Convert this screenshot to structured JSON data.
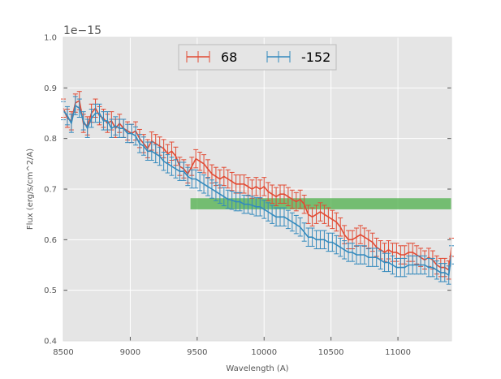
{
  "chart_data": {
    "type": "line",
    "title": "",
    "xlabel": "Wavelength (A)",
    "ylabel": "Flux (erg/s/cm^2/A)",
    "offset_text": "1e−15",
    "xlim": [
      8500,
      11400
    ],
    "ylim": [
      0.4,
      1.0
    ],
    "xticks": [
      8500,
      9000,
      9500,
      10000,
      10500,
      11000
    ],
    "xtick_labels": [
      "8500",
      "9000",
      "9500",
      "10000",
      "10500",
      "11000"
    ],
    "yticks": [
      0.4,
      0.5,
      0.6,
      0.7,
      0.8,
      0.9,
      1.0
    ],
    "ytick_labels": [
      "0.4",
      "0.5",
      "0.6",
      "0.7",
      "0.8",
      "0.9",
      "1.0"
    ],
    "grid": true,
    "legend_position": "top-center",
    "band": {
      "x_start": 9450,
      "x_end": 11400,
      "y_low": 0.66,
      "y_high": 0.682,
      "color": "#4daf4a"
    },
    "series": [
      {
        "name": "68",
        "color": "#e24a33",
        "error": 0.018,
        "x": [
          8500,
          8530,
          8560,
          8590,
          8620,
          8650,
          8680,
          8710,
          8740,
          8770,
          8800,
          8830,
          8860,
          8890,
          8920,
          8950,
          8980,
          9010,
          9040,
          9070,
          9100,
          9130,
          9160,
          9190,
          9220,
          9250,
          9280,
          9310,
          9340,
          9370,
          9400,
          9430,
          9460,
          9490,
          9520,
          9550,
          9580,
          9610,
          9640,
          9670,
          9700,
          9730,
          9760,
          9790,
          9820,
          9850,
          9880,
          9910,
          9940,
          9970,
          10000,
          10030,
          10060,
          10090,
          10120,
          10150,
          10180,
          10210,
          10240,
          10270,
          10300,
          10330,
          10360,
          10390,
          10420,
          10450,
          10480,
          10510,
          10540,
          10570,
          10600,
          10630,
          10660,
          10690,
          10720,
          10750,
          10780,
          10810,
          10840,
          10870,
          10900,
          10930,
          10960,
          10990,
          11020,
          11050,
          11080,
          11110,
          11140,
          11170,
          11200,
          11230,
          11260,
          11290,
          11320,
          11350,
          11380,
          11400
        ],
        "y": [
          0.86,
          0.84,
          0.835,
          0.87,
          0.875,
          0.83,
          0.825,
          0.85,
          0.86,
          0.845,
          0.84,
          0.83,
          0.835,
          0.82,
          0.83,
          0.82,
          0.815,
          0.81,
          0.815,
          0.8,
          0.79,
          0.78,
          0.795,
          0.79,
          0.785,
          0.78,
          0.77,
          0.775,
          0.765,
          0.745,
          0.74,
          0.73,
          0.745,
          0.76,
          0.755,
          0.75,
          0.74,
          0.73,
          0.725,
          0.72,
          0.725,
          0.72,
          0.715,
          0.71,
          0.71,
          0.71,
          0.705,
          0.7,
          0.705,
          0.7,
          0.705,
          0.695,
          0.69,
          0.685,
          0.69,
          0.69,
          0.685,
          0.68,
          0.675,
          0.68,
          0.67,
          0.65,
          0.645,
          0.65,
          0.655,
          0.65,
          0.645,
          0.64,
          0.635,
          0.625,
          0.61,
          0.6,
          0.6,
          0.605,
          0.61,
          0.605,
          0.6,
          0.595,
          0.585,
          0.58,
          0.575,
          0.58,
          0.575,
          0.575,
          0.57,
          0.57,
          0.575,
          0.575,
          0.57,
          0.565,
          0.56,
          0.565,
          0.56,
          0.55,
          0.545,
          0.545,
          0.54,
          0.585
        ]
      },
      {
        "name": "-152",
        "color": "#348abd",
        "error": 0.018,
        "x": [
          8500,
          8530,
          8560,
          8590,
          8620,
          8650,
          8680,
          8710,
          8740,
          8770,
          8800,
          8830,
          8860,
          8890,
          8920,
          8950,
          8980,
          9010,
          9040,
          9070,
          9100,
          9130,
          9160,
          9190,
          9220,
          9250,
          9280,
          9310,
          9340,
          9370,
          9400,
          9430,
          9460,
          9490,
          9520,
          9550,
          9580,
          9610,
          9640,
          9670,
          9700,
          9730,
          9760,
          9790,
          9820,
          9850,
          9880,
          9910,
          9940,
          9970,
          10000,
          10030,
          10060,
          10090,
          10120,
          10150,
          10180,
          10210,
          10240,
          10270,
          10300,
          10330,
          10360,
          10390,
          10420,
          10450,
          10480,
          10510,
          10540,
          10570,
          10600,
          10630,
          10660,
          10690,
          10720,
          10750,
          10780,
          10810,
          10840,
          10870,
          10900,
          10930,
          10960,
          10990,
          11020,
          11050,
          11080,
          11110,
          11140,
          11170,
          11200,
          11230,
          11260,
          11290,
          11320,
          11350,
          11380,
          11400
        ],
        "y": [
          0.855,
          0.845,
          0.83,
          0.865,
          0.86,
          0.835,
          0.82,
          0.84,
          0.85,
          0.85,
          0.835,
          0.835,
          0.82,
          0.825,
          0.82,
          0.82,
          0.81,
          0.81,
          0.805,
          0.79,
          0.785,
          0.775,
          0.775,
          0.77,
          0.765,
          0.755,
          0.75,
          0.745,
          0.74,
          0.735,
          0.735,
          0.725,
          0.72,
          0.72,
          0.715,
          0.71,
          0.705,
          0.7,
          0.695,
          0.69,
          0.685,
          0.68,
          0.678,
          0.675,
          0.675,
          0.67,
          0.67,
          0.668,
          0.665,
          0.665,
          0.66,
          0.655,
          0.65,
          0.645,
          0.645,
          0.645,
          0.64,
          0.635,
          0.63,
          0.625,
          0.615,
          0.605,
          0.605,
          0.6,
          0.6,
          0.6,
          0.595,
          0.595,
          0.59,
          0.585,
          0.58,
          0.575,
          0.575,
          0.57,
          0.57,
          0.57,
          0.565,
          0.565,
          0.565,
          0.56,
          0.555,
          0.555,
          0.55,
          0.545,
          0.545,
          0.545,
          0.55,
          0.55,
          0.55,
          0.55,
          0.55,
          0.545,
          0.545,
          0.54,
          0.535,
          0.535,
          0.53,
          0.57
        ]
      }
    ]
  }
}
